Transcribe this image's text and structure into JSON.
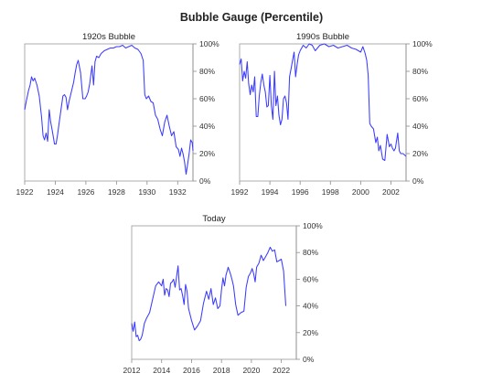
{
  "title": "Bubble Gauge (Percentile)",
  "colors": {
    "series": "#3b3bff",
    "frame": "#a6a6a6",
    "axis": "#8c8c8c"
  },
  "chart_data": [
    {
      "type": "line",
      "title": "1920s Bubble",
      "xlabel": "",
      "ylabel": "",
      "xlim": [
        1922,
        1933
      ],
      "ylim": [
        0,
        100
      ],
      "x_ticks": [
        1922,
        1924,
        1926,
        1928,
        1930,
        1932
      ],
      "y_ticks": [
        0,
        20,
        40,
        60,
        80,
        100
      ],
      "y_tick_labels": [
        "0%",
        "20%",
        "40%",
        "60%",
        "80%",
        "100%"
      ],
      "grid": false,
      "legend": "none",
      "series": [
        {
          "x": [
            1922.0,
            1922.1,
            1922.25,
            1922.35,
            1922.45,
            1922.55,
            1922.65,
            1922.8,
            1922.95,
            1923.1,
            1923.2,
            1923.3,
            1923.4,
            1923.5,
            1923.6,
            1923.7,
            1923.8,
            1923.95,
            1924.05,
            1924.15,
            1924.25,
            1924.4,
            1924.5,
            1924.6,
            1924.7,
            1924.8,
            1924.9,
            1925.05,
            1925.2,
            1925.3,
            1925.4,
            1925.5,
            1925.65,
            1925.8,
            1925.95,
            1926.05,
            1926.15,
            1926.25,
            1926.4,
            1926.5,
            1926.6,
            1926.7,
            1926.85,
            1927.0,
            1927.2,
            1927.4,
            1927.6,
            1927.8,
            1928.0,
            1928.2,
            1928.4,
            1928.6,
            1928.8,
            1929.0,
            1929.2,
            1929.4,
            1929.6,
            1929.75,
            1929.85,
            1929.95,
            1930.1,
            1930.25,
            1930.4,
            1930.55,
            1930.7,
            1930.85,
            1931.0,
            1931.15,
            1931.3,
            1931.45,
            1931.6,
            1931.75,
            1931.9,
            1932.05,
            1932.15,
            1932.25,
            1932.35,
            1932.45,
            1932.55,
            1932.65,
            1932.75,
            1932.85,
            1932.95,
            1933.0
          ],
          "y": [
            52,
            58,
            66,
            70,
            76,
            73,
            75,
            70,
            62,
            47,
            33,
            30,
            35,
            29,
            52,
            43,
            37,
            27,
            27,
            34,
            42,
            54,
            62,
            63,
            61,
            52,
            58,
            65,
            72,
            79,
            85,
            88,
            79,
            60,
            60,
            62,
            65,
            71,
            84,
            70,
            87,
            91,
            90,
            93,
            95,
            96,
            97,
            97,
            98,
            98,
            99,
            97,
            98,
            99,
            97,
            96,
            93,
            88,
            63,
            60,
            62,
            58,
            57,
            48,
            45,
            38,
            33,
            43,
            48,
            40,
            33,
            36,
            25,
            23,
            18,
            24,
            20,
            14,
            5,
            12,
            20,
            30,
            28,
            22
          ]
        }
      ]
    },
    {
      "type": "line",
      "title": "1990s Bubble",
      "xlabel": "",
      "ylabel": "",
      "xlim": [
        1992,
        2003
      ],
      "ylim": [
        0,
        100
      ],
      "x_ticks": [
        1992,
        1994,
        1996,
        1998,
        2000,
        2002
      ],
      "y_ticks": [
        0,
        20,
        40,
        60,
        80,
        100
      ],
      "y_tick_labels": [
        "0%",
        "20%",
        "40%",
        "60%",
        "80%",
        "100%"
      ],
      "grid": false,
      "legend": "none",
      "series": [
        {
          "x": [
            1992.0,
            1992.1,
            1992.2,
            1992.3,
            1992.4,
            1992.5,
            1992.6,
            1992.7,
            1992.8,
            1992.9,
            1993.0,
            1993.1,
            1993.2,
            1993.3,
            1993.4,
            1993.5,
            1993.6,
            1993.7,
            1993.8,
            1993.9,
            1994.0,
            1994.1,
            1994.2,
            1994.3,
            1994.4,
            1994.5,
            1994.6,
            1994.7,
            1994.8,
            1994.9,
            1995.0,
            1995.1,
            1995.2,
            1995.3,
            1995.4,
            1995.5,
            1995.6,
            1995.7,
            1995.8,
            1995.9,
            1996.0,
            1996.2,
            1996.4,
            1996.6,
            1996.8,
            1997.0,
            1997.3,
            1997.6,
            1997.9,
            1998.2,
            1998.5,
            1998.8,
            1999.1,
            1999.4,
            1999.7,
            2000.0,
            2000.15,
            2000.3,
            2000.4,
            2000.5,
            2000.6,
            2000.7,
            2000.85,
            2001.0,
            2001.1,
            2001.2,
            2001.3,
            2001.45,
            2001.6,
            2001.75,
            2001.9,
            2002.0,
            2002.1,
            2002.2,
            2002.3,
            2002.45,
            2002.55,
            2002.65,
            2002.8,
            2003.0
          ],
          "y": [
            85,
            89,
            73,
            80,
            75,
            87,
            71,
            63,
            70,
            65,
            76,
            47,
            47,
            62,
            72,
            78,
            70,
            65,
            54,
            55,
            77,
            55,
            45,
            80,
            55,
            62,
            48,
            41,
            45,
            60,
            62,
            57,
            45,
            76,
            82,
            88,
            94,
            76,
            85,
            92,
            95,
            99,
            97,
            100,
            99,
            95,
            99,
            100,
            98,
            99,
            97,
            98,
            99,
            97,
            96,
            94,
            98,
            93,
            88,
            77,
            42,
            40,
            38,
            28,
            32,
            22,
            26,
            16,
            15,
            34,
            25,
            27,
            24,
            22,
            24,
            35,
            22,
            20,
            20,
            18
          ]
        }
      ]
    },
    {
      "type": "line",
      "title": "Today",
      "xlabel": "",
      "ylabel": "",
      "xlim": [
        2012,
        2023
      ],
      "ylim": [
        0,
        100
      ],
      "x_ticks": [
        2012,
        2014,
        2016,
        2018,
        2020,
        2022
      ],
      "y_ticks": [
        0,
        20,
        40,
        60,
        80,
        100
      ],
      "y_tick_labels": [
        "0%",
        "20%",
        "40%",
        "60%",
        "80%",
        "100%"
      ],
      "grid": false,
      "legend": "none",
      "series": [
        {
          "x": [
            2012.0,
            2012.1,
            2012.2,
            2012.3,
            2012.4,
            2012.5,
            2012.6,
            2012.7,
            2012.85,
            2013.0,
            2013.2,
            2013.4,
            2013.6,
            2013.8,
            2014.0,
            2014.1,
            2014.2,
            2014.3,
            2014.4,
            2014.5,
            2014.6,
            2014.7,
            2014.8,
            2014.9,
            2015.0,
            2015.1,
            2015.2,
            2015.3,
            2015.4,
            2015.5,
            2015.6,
            2015.7,
            2015.8,
            2016.0,
            2016.2,
            2016.4,
            2016.6,
            2016.8,
            2017.0,
            2017.15,
            2017.3,
            2017.45,
            2017.6,
            2017.75,
            2017.9,
            2018.0,
            2018.1,
            2018.2,
            2018.3,
            2018.45,
            2018.6,
            2018.7,
            2018.8,
            2018.95,
            2019.1,
            2019.3,
            2019.5,
            2019.65,
            2019.8,
            2019.95,
            2020.05,
            2020.15,
            2020.25,
            2020.35,
            2020.5,
            2020.65,
            2020.8,
            2020.95,
            2021.1,
            2021.25,
            2021.4,
            2021.55,
            2021.7,
            2021.85,
            2022.0,
            2022.15,
            2022.3
          ],
          "y": [
            27,
            21,
            28,
            17,
            18,
            14,
            15,
            18,
            27,
            31,
            35,
            45,
            55,
            58,
            55,
            60,
            48,
            53,
            52,
            47,
            57,
            58,
            60,
            54,
            62,
            70,
            52,
            53,
            48,
            41,
            56,
            51,
            38,
            29,
            22,
            25,
            29,
            42,
            51,
            45,
            53,
            41,
            46,
            38,
            40,
            52,
            61,
            55,
            63,
            69,
            64,
            60,
            55,
            41,
            33,
            35,
            36,
            54,
            62,
            65,
            68,
            64,
            58,
            69,
            72,
            78,
            74,
            77,
            80,
            84,
            81,
            82,
            73,
            74,
            75,
            66,
            40
          ]
        }
      ]
    }
  ]
}
